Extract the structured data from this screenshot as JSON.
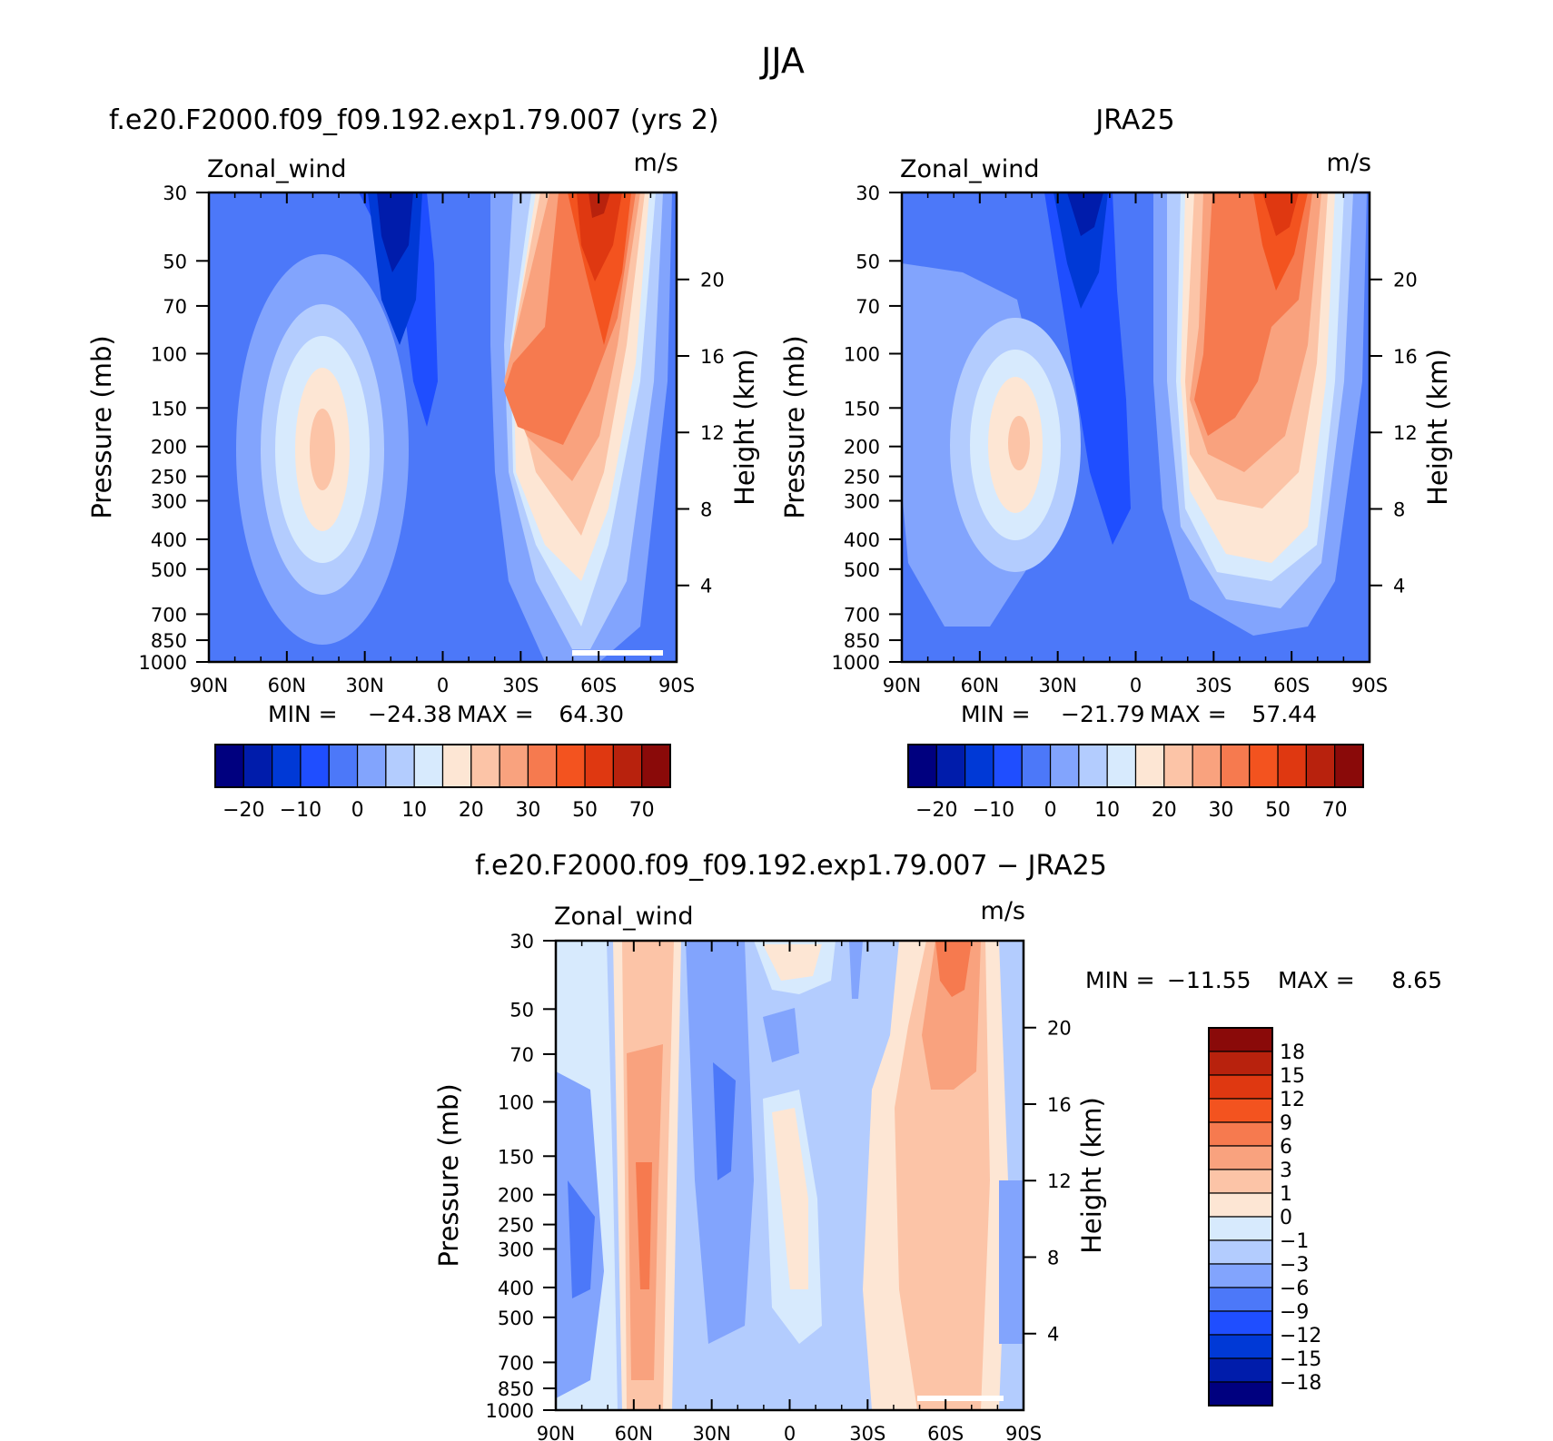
{
  "figure": {
    "title": "JJA"
  },
  "colors": {
    "main": [
      "#00007f",
      "#001cab",
      "#0039d6",
      "#1f4eff",
      "#4c78f9",
      "#82a4fd",
      "#b3ccfe",
      "#d7eafd",
      "#fde6d4",
      "#fcc4a7",
      "#f9a27e",
      "#f67a4f",
      "#f3531f",
      "#df3811",
      "#b8220d",
      "#8a0a09"
    ],
    "diff": [
      "#00007f",
      "#001cab",
      "#0039d6",
      "#1f4eff",
      "#4c78f9",
      "#82a4fd",
      "#b3ccfe",
      "#d7eafd",
      "#fde6d4",
      "#fcc4a7",
      "#f9a27e",
      "#f67a4f",
      "#f3531f",
      "#df3811",
      "#b8220d",
      "#8a0a09"
    ]
  },
  "chart_data": [
    {
      "id": "model",
      "type": "contour",
      "title": "f.e20.F2000.f09_f09.192.exp1.79.007 (yrs 2)",
      "left_label": "Zonal_wind",
      "right_label": "m/s",
      "ylabel": "Pressure (mb)",
      "y2label": "Height (km)",
      "x_ticks": [
        "90N",
        "60N",
        "30N",
        "0",
        "30S",
        "60S",
        "90S"
      ],
      "y_ticks": [
        "30",
        "50",
        "70",
        "100",
        "150",
        "200",
        "250",
        "300",
        "400",
        "500",
        "700",
        "850",
        "1000"
      ],
      "y2_ticks": [
        "20",
        "16",
        "12",
        "8",
        "4"
      ],
      "min": -24.38,
      "max": 64.3,
      "min_label": "MIN =",
      "max_label": "MAX =",
      "min_text": "−24.38",
      "max_text": "64.30",
      "colorbar_labels": [
        "−20",
        "−10",
        "0",
        "10",
        "20",
        "30",
        "50",
        "70"
      ]
    },
    {
      "id": "obs",
      "type": "contour",
      "title": "JRA25",
      "left_label": "Zonal_wind",
      "right_label": "m/s",
      "ylabel": "Pressure (mb)",
      "y2label": "Height (km)",
      "x_ticks": [
        "90N",
        "60N",
        "30N",
        "0",
        "30S",
        "60S",
        "90S"
      ],
      "y_ticks": [
        "30",
        "50",
        "70",
        "100",
        "150",
        "200",
        "250",
        "300",
        "400",
        "500",
        "700",
        "850",
        "1000"
      ],
      "y2_ticks": [
        "20",
        "16",
        "12",
        "8",
        "4"
      ],
      "min": -21.79,
      "max": 57.44,
      "min_label": "MIN =",
      "max_label": "MAX =",
      "min_text": "−21.79",
      "max_text": "57.44",
      "colorbar_labels": [
        "−20",
        "−10",
        "0",
        "10",
        "20",
        "30",
        "50",
        "70"
      ]
    },
    {
      "id": "diff",
      "type": "contour",
      "title": "f.e20.F2000.f09_f09.192.exp1.79.007 − JRA25",
      "left_label": "Zonal_wind",
      "right_label": "m/s",
      "ylabel": "Pressure (mb)",
      "y2label": "Height (km)",
      "x_ticks": [
        "90N",
        "60N",
        "30N",
        "0",
        "30S",
        "60S",
        "90S"
      ],
      "y_ticks": [
        "30",
        "50",
        "70",
        "100",
        "150",
        "200",
        "250",
        "300",
        "400",
        "500",
        "700",
        "850",
        "1000"
      ],
      "y2_ticks": [
        "20",
        "16",
        "12",
        "8",
        "4"
      ],
      "min": -11.55,
      "max": 8.65,
      "min_label": "MIN =",
      "max_label": "MAX =",
      "min_text": "−11.55",
      "max_text": "8.65",
      "colorbar_labels": [
        "18",
        "15",
        "12",
        "9",
        "6",
        "3",
        "1",
        "0",
        "−1",
        "−3",
        "−6",
        "−9",
        "−12",
        "−15",
        "−18"
      ]
    }
  ]
}
